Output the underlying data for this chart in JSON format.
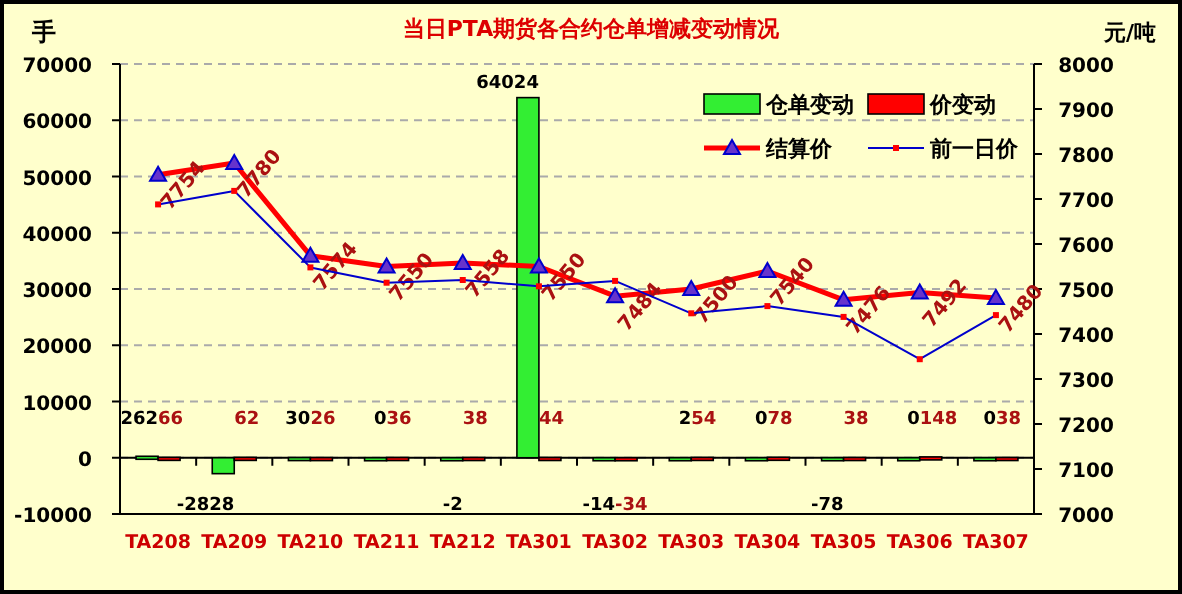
{
  "chart_data": {
    "type": "bar",
    "title": "当日PTA期货各合约仓单增减变动情况",
    "ylabel": "手",
    "y2label": "元/吨",
    "categories": [
      "TA208",
      "TA209",
      "TA210",
      "TA211",
      "TA212",
      "TA301",
      "TA302",
      "TA303",
      "TA304",
      "TA305",
      "TA306",
      "TA307"
    ],
    "series": [
      {
        "name": "仓单变动",
        "color": "#33ee33",
        "values": [
          262,
          -2828,
          30,
          0,
          -2,
          64024,
          -14,
          2,
          0,
          -78,
          0,
          0
        ],
        "value_labels": [
          "262",
          "-2828",
          "30",
          "0",
          "-2",
          "64024",
          "-14",
          "2",
          "0",
          "-78",
          "0",
          "0"
        ]
      },
      {
        "name": "价变动",
        "color": "#ff0000",
        "values": [
          66,
          62,
          26,
          36,
          38,
          44,
          -34,
          54,
          78,
          38,
          148,
          38
        ],
        "value_labels": [
          "66",
          "62",
          "26",
          "36",
          "38",
          "44",
          "-34",
          "54",
          "78",
          "38",
          "148",
          "38"
        ]
      },
      {
        "name": "结算价",
        "type": "line",
        "axis": "y2",
        "color": "#ff0000",
        "marker": "triangle",
        "values": [
          7754,
          7780,
          7574,
          7550,
          7558,
          7550,
          7484,
          7500,
          7540,
          7476,
          7492,
          7480
        ],
        "value_labels": [
          "7754",
          "7780",
          "7574",
          "7550",
          "7558",
          "7550",
          "7484",
          "7500",
          "7540",
          "7476",
          "7492",
          "7480"
        ]
      },
      {
        "name": "前一日价",
        "type": "line",
        "axis": "y2",
        "color": "#0000cc",
        "marker": "square",
        "values": [
          7688,
          7718,
          7548,
          7514,
          7520,
          7506,
          7518,
          7446,
          7462,
          7438,
          7344,
          7442
        ]
      }
    ],
    "ylim": [
      -10000,
      70000
    ],
    "yticks": [
      -10000,
      0,
      10000,
      20000,
      30000,
      40000,
      50000,
      60000,
      70000
    ],
    "y2lim": [
      7000,
      8000
    ],
    "y2ticks": [
      7000,
      7100,
      7200,
      7300,
      7400,
      7500,
      7600,
      7700,
      7800,
      7900,
      8000
    ],
    "grid": "y",
    "legend": "top right",
    "line_style": "solid"
  }
}
